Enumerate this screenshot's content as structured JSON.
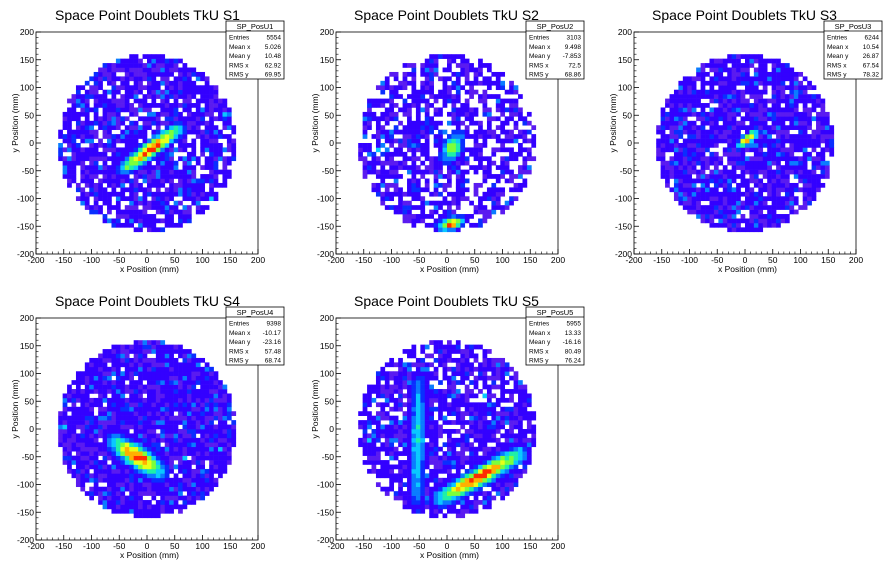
{
  "chart_data": [
    {
      "type": "heatmap",
      "title": "Space Point Doublets TkU S1",
      "xlabel": "x Position (mm)",
      "ylabel": "y Position (mm)",
      "xlim": [
        -200,
        200
      ],
      "ylim": [
        -200,
        200
      ],
      "xticks": [
        -200,
        -150,
        -100,
        -50,
        0,
        50,
        100,
        150,
        200
      ],
      "yticks": [
        -200,
        -150,
        -100,
        -50,
        0,
        50,
        100,
        150,
        200
      ],
      "stats": {
        "name": "SP_PosU1",
        "rows": [
          {
            "label": "Entries",
            "value": "5554"
          },
          {
            "label": "Mean x",
            "value": "5.026"
          },
          {
            "label": "Mean y",
            "value": "10.48"
          },
          {
            "label": "RMS x",
            "value": "62.92"
          },
          {
            "label": "RMS y",
            "value": "69.95"
          }
        ]
      },
      "distribution": {
        "radius_mm": 160,
        "hot_features": [
          {
            "x1": -40,
            "y1": -45,
            "x2": 55,
            "y2": 25,
            "width_mm": 10,
            "peak": 1.0
          }
        ],
        "empty_fraction": 0.18
      }
    },
    {
      "type": "heatmap",
      "title": "Space Point Doublets TkU S2",
      "xlabel": "x Position (mm)",
      "ylabel": "y Position (mm)",
      "xlim": [
        -200,
        200
      ],
      "ylim": [
        -200,
        200
      ],
      "xticks": [
        -200,
        -150,
        -100,
        -50,
        0,
        50,
        100,
        150,
        200
      ],
      "yticks": [
        -200,
        -150,
        -100,
        -50,
        0,
        50,
        100,
        150,
        200
      ],
      "stats": {
        "name": "SP_PosU2",
        "rows": [
          {
            "label": "Entries",
            "value": "3103"
          },
          {
            "label": "Mean x",
            "value": "9.498"
          },
          {
            "label": "Mean y",
            "value": "-7.853"
          },
          {
            "label": "RMS x",
            "value": "72.5"
          },
          {
            "label": "RMS y",
            "value": "68.86"
          }
        ]
      },
      "distribution": {
        "radius_mm": 160,
        "hot_features": [
          {
            "x1": 0,
            "y1": -25,
            "x2": 20,
            "y2": 10,
            "width_mm": 12,
            "peak": 0.75
          },
          {
            "x1": -10,
            "y1": -150,
            "x2": 25,
            "y2": -140,
            "width_mm": 8,
            "peak": 0.95
          }
        ],
        "empty_fraction": 0.35
      }
    },
    {
      "type": "heatmap",
      "title": "Space Point Doublets TkU S3",
      "xlabel": "x Position (mm)",
      "ylabel": "y Position (mm)",
      "xlim": [
        -200,
        200
      ],
      "ylim": [
        -200,
        200
      ],
      "xticks": [
        -200,
        -150,
        -100,
        -50,
        0,
        50,
        100,
        150,
        200
      ],
      "yticks": [
        -200,
        -150,
        -100,
        -50,
        0,
        50,
        100,
        150,
        200
      ],
      "stats": {
        "name": "SP_PosU3",
        "rows": [
          {
            "label": "Entries",
            "value": "6244"
          },
          {
            "label": "Mean x",
            "value": "10.54"
          },
          {
            "label": "Mean y",
            "value": "26.87"
          },
          {
            "label": "RMS x",
            "value": "67.54"
          },
          {
            "label": "RMS y",
            "value": "78.32"
          }
        ]
      },
      "distribution": {
        "radius_mm": 160,
        "hot_features": [
          {
            "x1": -10,
            "y1": -5,
            "x2": 20,
            "y2": 20,
            "width_mm": 6,
            "peak": 1.0
          }
        ],
        "empty_fraction": 0.12
      }
    },
    {
      "type": "heatmap",
      "title": "Space Point Doublets TkU S4",
      "xlabel": "x Position (mm)",
      "ylabel": "y Position (mm)",
      "xlim": [
        -200,
        200
      ],
      "ylim": [
        -200,
        200
      ],
      "xticks": [
        -200,
        -150,
        -100,
        -50,
        0,
        50,
        100,
        150,
        200
      ],
      "yticks": [
        -200,
        -150,
        -100,
        -50,
        0,
        50,
        100,
        150,
        200
      ],
      "stats": {
        "name": "SP_PosU4",
        "rows": [
          {
            "label": "Entries",
            "value": "9398"
          },
          {
            "label": "Mean x",
            "value": "-10.17"
          },
          {
            "label": "Mean y",
            "value": "-23.16"
          },
          {
            "label": "RMS x",
            "value": "57.48"
          },
          {
            "label": "RMS y",
            "value": "68.74"
          }
        ]
      },
      "distribution": {
        "radius_mm": 160,
        "hot_features": [
          {
            "x1": -55,
            "y1": -25,
            "x2": 20,
            "y2": -75,
            "width_mm": 14,
            "peak": 1.0
          }
        ],
        "empty_fraction": 0.06
      }
    },
    {
      "type": "heatmap",
      "title": "Space Point Doublets TkU S5",
      "xlabel": "x Position (mm)",
      "ylabel": "y Position (mm)",
      "xlim": [
        -200,
        200
      ],
      "ylim": [
        -200,
        200
      ],
      "xticks": [
        -200,
        -150,
        -100,
        -50,
        0,
        50,
        100,
        150,
        200
      ],
      "yticks": [
        -200,
        -150,
        -100,
        -50,
        0,
        50,
        100,
        150,
        200
      ],
      "stats": {
        "name": "SP_PosU5",
        "rows": [
          {
            "label": "Entries",
            "value": "5955"
          },
          {
            "label": "Mean x",
            "value": "13.33"
          },
          {
            "label": "Mean y",
            "value": "-16.16"
          },
          {
            "label": "RMS x",
            "value": "80.49"
          },
          {
            "label": "RMS y",
            "value": "76.24"
          }
        ]
      },
      "distribution": {
        "radius_mm": 160,
        "hot_features": [
          {
            "x1": -10,
            "y1": -125,
            "x2": 130,
            "y2": -45,
            "width_mm": 12,
            "peak": 1.0
          },
          {
            "x1": -50,
            "y1": 90,
            "x2": -55,
            "y2": -130,
            "width_mm": 10,
            "peak": 0.55
          }
        ],
        "empty_fraction": 0.22
      }
    }
  ],
  "colors": {
    "background": "#ffffff",
    "empty_bin": "#ffffff",
    "palette": [
      "#5a1bf0",
      "#3300ff",
      "#0a2eff",
      "#0a7cff",
      "#0ac8ff",
      "#1ef0a8",
      "#7cff3a",
      "#e8ff18",
      "#ffb000",
      "#ff2a00"
    ]
  }
}
